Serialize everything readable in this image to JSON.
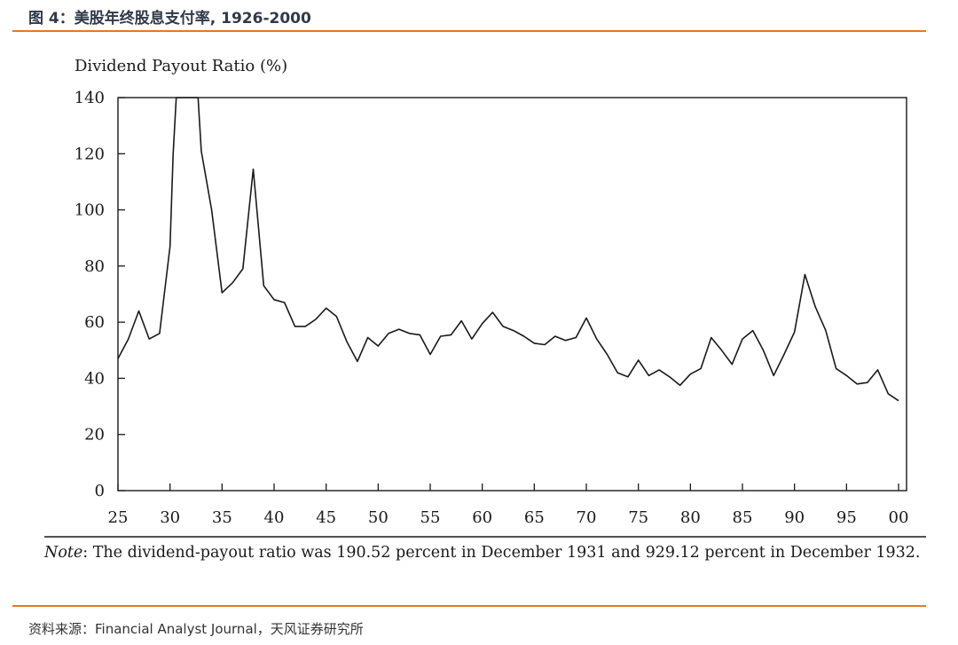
{
  "figure": {
    "title": "图 4：美股年终股息支付率, 1926-2000",
    "source": "资料来源：Financial Analyst Journal，天风证券研究所",
    "accent_color": "#e87722"
  },
  "note": {
    "label": "Note",
    "text": ": The dividend-payout ratio was 190.52 percent in December 1931 and 929.12 percent in December 1932."
  },
  "chart_data": {
    "type": "line",
    "title": "",
    "ylabel": "Dividend Payout Ratio (%)",
    "xlabel": "",
    "ylim": [
      0,
      140
    ],
    "xlim": [
      1925,
      2000
    ],
    "yticks": [
      0,
      20,
      40,
      60,
      80,
      100,
      120,
      140
    ],
    "ytick_labels": [
      "0",
      "20",
      "40",
      "60",
      "80",
      "100",
      "120",
      "140"
    ],
    "xticks": [
      1925,
      1930,
      1935,
      1940,
      1945,
      1950,
      1955,
      1960,
      1965,
      1970,
      1975,
      1980,
      1985,
      1990,
      1995,
      2000
    ],
    "xtick_labels": [
      "25",
      "30",
      "35",
      "40",
      "45",
      "50",
      "55",
      "60",
      "65",
      "70",
      "75",
      "80",
      "85",
      "90",
      "95",
      "00"
    ],
    "grid": false,
    "series": [
      {
        "name": "Dividend Payout Ratio",
        "x": [
          1925,
          1926,
          1927,
          1928,
          1929,
          1930,
          1930.3,
          1930.6,
          1931,
          1931.5,
          1932,
          1932.5,
          1932.7,
          1933,
          1934,
          1935,
          1936,
          1937,
          1938,
          1939,
          1940,
          1941,
          1942,
          1943,
          1944,
          1945,
          1946,
          1947,
          1948,
          1949,
          1950,
          1951,
          1952,
          1953,
          1954,
          1955,
          1956,
          1957,
          1958,
          1959,
          1960,
          1961,
          1962,
          1963,
          1964,
          1965,
          1966,
          1967,
          1968,
          1969,
          1970,
          1971,
          1972,
          1973,
          1974,
          1975,
          1976,
          1977,
          1978,
          1979,
          1980,
          1981,
          1982,
          1983,
          1984,
          1985,
          1986,
          1987,
          1988,
          1989,
          1990,
          1991,
          1992,
          1993,
          1994,
          1995,
          1996,
          1997,
          1998,
          1999,
          2000
        ],
        "y": [
          47,
          54,
          64,
          54,
          56,
          87,
          120,
          140,
          140,
          140,
          140,
          140,
          140,
          121,
          100,
          70.5,
          74,
          79,
          114.5,
          73,
          68,
          67,
          58.5,
          58.5,
          61,
          65,
          62,
          53,
          46,
          54.5,
          51.5,
          56,
          57.5,
          56,
          55.5,
          48.5,
          55,
          55.5,
          60.5,
          54,
          59.5,
          63.5,
          58.5,
          57,
          55,
          52.5,
          52,
          55,
          53.5,
          54.5,
          61.5,
          54,
          48.5,
          42,
          40.5,
          46.5,
          41,
          43,
          40.5,
          37.5,
          41.5,
          43.5,
          54.5,
          50,
          45,
          54,
          57,
          50,
          41,
          48.5,
          56.5,
          77,
          65.5,
          57,
          43.5,
          41,
          38,
          38.5,
          43,
          34.5,
          32
        ]
      }
    ]
  }
}
